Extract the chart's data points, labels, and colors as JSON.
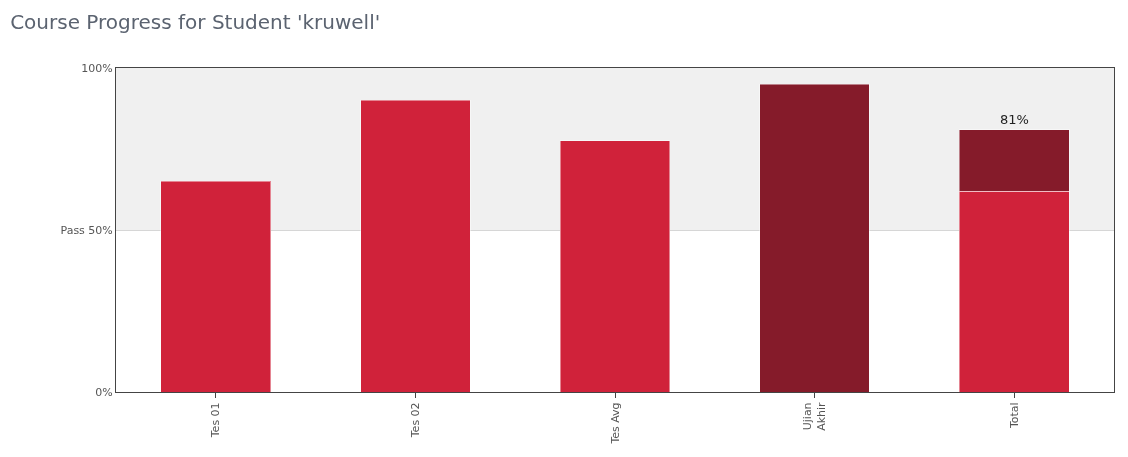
{
  "chart_data": {
    "type": "bar",
    "title": "Course Progress for Student 'kruwell'",
    "categories": [
      "Tes 01",
      "Tes 02",
      "Tes Avg",
      "Ujian\nAkhir",
      "Total"
    ],
    "series": [
      {
        "color": "#d0223a",
        "values": [
          65,
          90,
          77.5,
          null,
          62
        ]
      },
      {
        "color": "#851b2a",
        "values": [
          null,
          null,
          null,
          95,
          19
        ]
      }
    ],
    "stacked": true,
    "totals": [
      null,
      null,
      null,
      null,
      "81%"
    ],
    "ylim": [
      0,
      100
    ],
    "yticks": [
      {
        "value": 0,
        "label": "0%"
      },
      {
        "value": 50,
        "label": "Pass 50%"
      },
      {
        "value": 100,
        "label": "100%"
      }
    ],
    "grid": "y",
    "bands": [
      {
        "axis": "y",
        "from": 50,
        "to": 100,
        "color": "#f0f0f0"
      }
    ]
  }
}
